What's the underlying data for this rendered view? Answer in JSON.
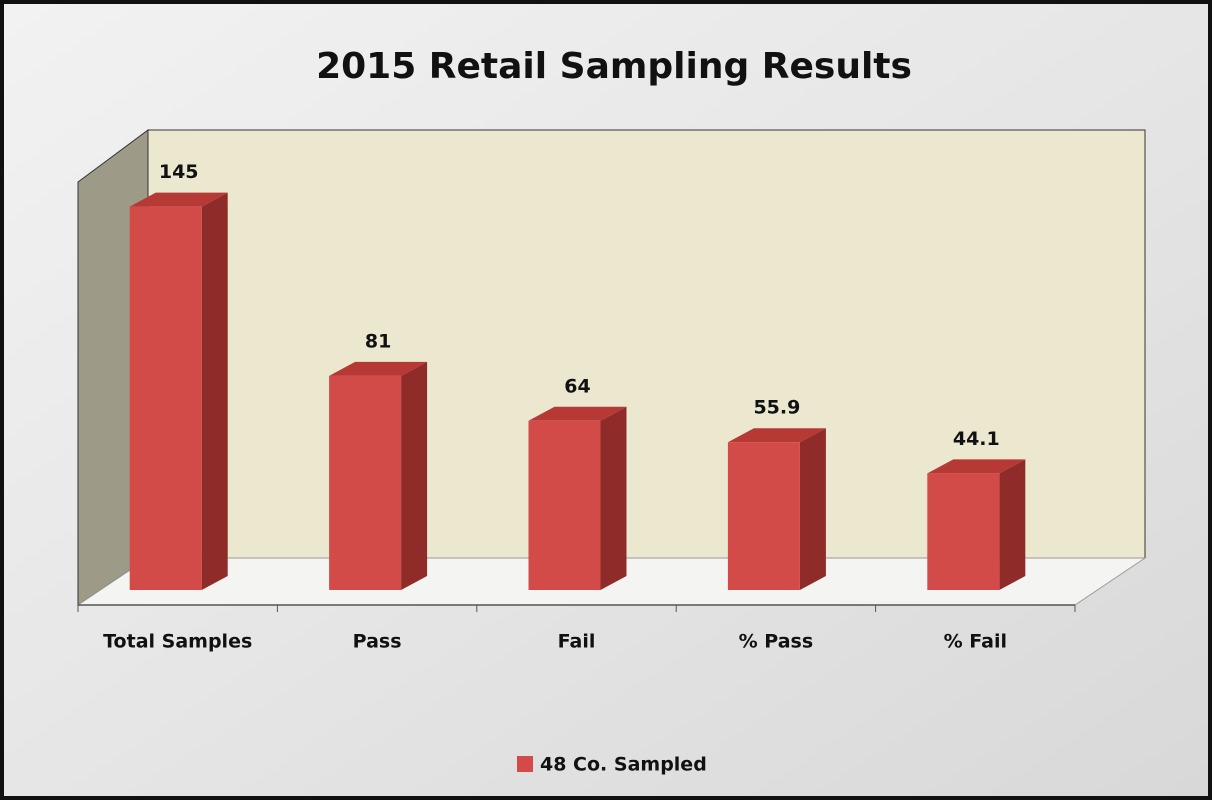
{
  "chart_data": {
    "type": "bar3d",
    "title": "2015 Retail Sampling Results",
    "categories": [
      "Total Samples",
      "Pass",
      "Fail",
      "% Pass",
      "% Fail"
    ],
    "series": [
      {
        "name": "48 Co. Sampled",
        "color": "#d24b48",
        "values": [
          145,
          81,
          64,
          55.9,
          44.1
        ]
      }
    ],
    "ylim": [
      0,
      160
    ],
    "legend": "bottom"
  }
}
